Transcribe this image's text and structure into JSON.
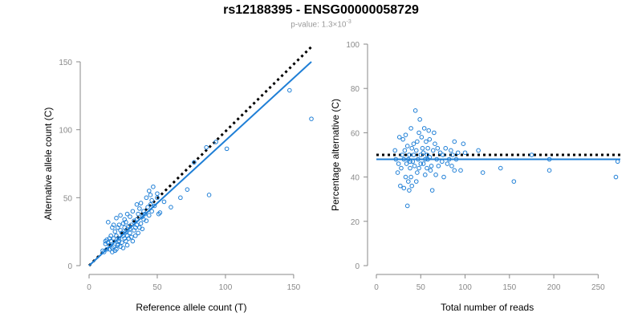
{
  "header": {
    "title": "rs12188395 - ENSG00000058729",
    "pvalue_prefix": "p-value: 1.3×10",
    "pvalue_exponent": "-3"
  },
  "colors": {
    "points": "#1f7fd6",
    "fit_line": "#1f7fd6",
    "reference_line": "#000000",
    "axis": "#8a8a8a"
  },
  "chart_data": [
    {
      "type": "scatter",
      "title": "",
      "xlabel": "Reference allele count (T)",
      "ylabel": "Alternative allele count (C)",
      "xlim": [
        0,
        163
      ],
      "ylim": [
        0,
        150
      ],
      "xticks": [
        0,
        50,
        100,
        150
      ],
      "yticks": [
        0,
        50,
        100,
        150
      ],
      "grid": false,
      "reference_line": {
        "style": "dotted",
        "x": [
          0,
          163
        ],
        "y": [
          0,
          161
        ]
      },
      "fit_line": {
        "style": "solid",
        "x": [
          0,
          163
        ],
        "y": [
          0,
          150
        ]
      },
      "x": [
        10,
        11,
        12,
        12,
        13,
        13,
        14,
        14,
        15,
        15,
        15,
        16,
        16,
        17,
        17,
        17,
        18,
        18,
        18,
        19,
        19,
        20,
        20,
        20,
        21,
        21,
        21,
        22,
        22,
        22,
        23,
        23,
        23,
        24,
        24,
        25,
        25,
        25,
        26,
        26,
        26,
        27,
        27,
        27,
        28,
        28,
        28,
        29,
        29,
        30,
        30,
        30,
        31,
        31,
        32,
        32,
        33,
        33,
        34,
        34,
        35,
        35,
        35,
        36,
        36,
        37,
        37,
        38,
        38,
        39,
        39,
        40,
        40,
        41,
        42,
        42,
        43,
        44,
        44,
        45,
        45,
        46,
        46,
        47,
        48,
        50,
        50,
        51,
        52,
        55,
        60,
        67,
        72,
        77,
        86,
        88,
        93,
        101,
        147,
        163
      ],
      "y": [
        11,
        10,
        16,
        18,
        12,
        19,
        32,
        17,
        12,
        20,
        15,
        22,
        18,
        13,
        28,
        10,
        30,
        14,
        20,
        11,
        25,
        12,
        22,
        35,
        16,
        28,
        15,
        20,
        18,
        30,
        14,
        26,
        37,
        24,
        17,
        13,
        31,
        22,
        20,
        34,
        28,
        18,
        25,
        32,
        22,
        15,
        38,
        29,
        20,
        24,
        36,
        27,
        21,
        30,
        18,
        40,
        26,
        33,
        28,
        22,
        45,
        34,
        30,
        24,
        38,
        28,
        42,
        31,
        46,
        36,
        27,
        34,
        40,
        38,
        33,
        50,
        43,
        37,
        55,
        45,
        52,
        40,
        48,
        58,
        44,
        50,
        53,
        38,
        39,
        47,
        43,
        50,
        56,
        76,
        87,
        52,
        91,
        86,
        129,
        108
      ]
    },
    {
      "type": "scatter",
      "title": "",
      "xlabel": "Total number of reads",
      "ylabel": "Percentage alternative (C)",
      "xlim": [
        0,
        275
      ],
      "ylim": [
        0,
        100
      ],
      "xticks": [
        0,
        50,
        100,
        150,
        200,
        250
      ],
      "yticks": [
        0,
        20,
        40,
        60,
        80,
        100
      ],
      "grid": false,
      "reference_line": {
        "style": "dotted",
        "y": 50
      },
      "fit_line": {
        "style": "solid",
        "y": 48
      },
      "x": [
        21,
        22,
        24,
        25,
        26,
        27,
        28,
        29,
        30,
        31,
        31,
        32,
        33,
        33,
        34,
        35,
        35,
        36,
        36,
        37,
        37,
        38,
        38,
        39,
        39,
        40,
        40,
        41,
        42,
        42,
        43,
        44,
        45,
        45,
        46,
        46,
        47,
        48,
        48,
        49,
        50,
        50,
        51,
        52,
        53,
        53,
        54,
        55,
        55,
        56,
        57,
        57,
        58,
        58,
        59,
        60,
        60,
        61,
        62,
        63,
        64,
        65,
        66,
        67,
        68,
        69,
        70,
        72,
        74,
        75,
        76,
        78,
        80,
        82,
        84,
        85,
        86,
        88,
        88,
        90,
        92,
        95,
        98,
        100,
        115,
        120,
        140,
        155,
        175,
        195,
        195,
        270,
        272
      ],
      "y": [
        52,
        48,
        42,
        46,
        58,
        36,
        44,
        50,
        57,
        35,
        48,
        52,
        40,
        59,
        46,
        27,
        54,
        38,
        48,
        34,
        50,
        44,
        47,
        62,
        40,
        36,
        53,
        47,
        50,
        55,
        45,
        70,
        38,
        52,
        42,
        56,
        48,
        60,
        44,
        66,
        46,
        50,
        58,
        53,
        51,
        46,
        62,
        48,
        41,
        56,
        50,
        44,
        53,
        48,
        61,
        57,
        49,
        43,
        45,
        34,
        52,
        60,
        55,
        41,
        48,
        53,
        45,
        51,
        47,
        50,
        40,
        53,
        46,
        48,
        52,
        45,
        50,
        56,
        43,
        48,
        51,
        43,
        55,
        51,
        52,
        42,
        44,
        38,
        50,
        48,
        43,
        40,
        47
      ]
    }
  ]
}
